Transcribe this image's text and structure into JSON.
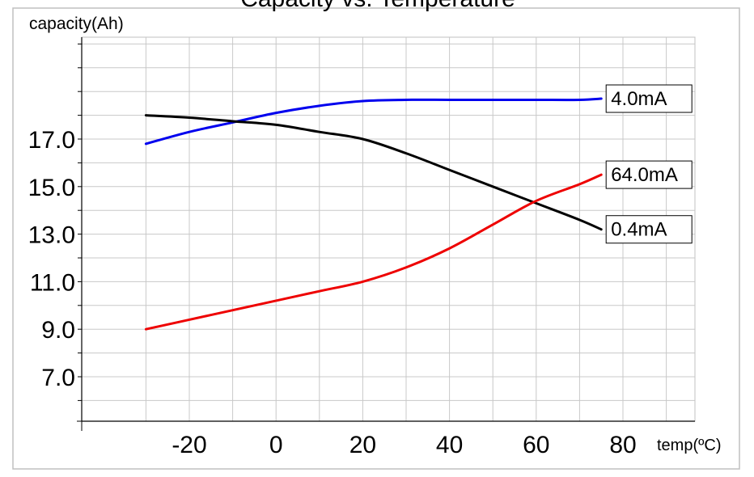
{
  "chart_data": {
    "type": "line",
    "title": "Capacity vs. Temperature",
    "ylabel": "capacity(Ah)",
    "xlabel": "temp(ºC)",
    "xlim": [
      -40,
      90
    ],
    "ylim": [
      3.0,
      22.0
    ],
    "x_ticks": [
      -20,
      0,
      20,
      40,
      60,
      80
    ],
    "y_ticks": [
      7.0,
      9.0,
      11.0,
      13.0,
      15.0,
      17.0
    ],
    "y_tick_labels": [
      "7.0",
      "9.0",
      "11.0",
      "13.0",
      "15.0",
      "17.0"
    ],
    "grid": true,
    "series": [
      {
        "name": "4.0mA",
        "color": "#0000ee",
        "points": [
          [
            -30,
            16.8
          ],
          [
            -20,
            17.3
          ],
          [
            -10,
            17.7
          ],
          [
            0,
            18.1
          ],
          [
            10,
            18.4
          ],
          [
            20,
            18.6
          ],
          [
            30,
            18.65
          ],
          [
            40,
            18.65
          ],
          [
            50,
            18.65
          ],
          [
            60,
            18.65
          ],
          [
            70,
            18.65
          ],
          [
            75,
            18.7
          ]
        ]
      },
      {
        "name": "0.4mA",
        "color": "#000000",
        "points": [
          [
            -30,
            18.0
          ],
          [
            -20,
            17.9
          ],
          [
            -10,
            17.75
          ],
          [
            0,
            17.6
          ],
          [
            10,
            17.3
          ],
          [
            20,
            17.0
          ],
          [
            30,
            16.4
          ],
          [
            40,
            15.7
          ],
          [
            50,
            15.0
          ],
          [
            60,
            14.3
          ],
          [
            70,
            13.6
          ],
          [
            75,
            13.2
          ]
        ]
      },
      {
        "name": "64.0mA",
        "color": "#ee0000",
        "points": [
          [
            -30,
            9.0
          ],
          [
            -20,
            9.4
          ],
          [
            -10,
            9.8
          ],
          [
            0,
            10.2
          ],
          [
            10,
            10.6
          ],
          [
            20,
            11.0
          ],
          [
            30,
            11.6
          ],
          [
            40,
            12.4
          ],
          [
            50,
            13.4
          ],
          [
            60,
            14.4
          ],
          [
            70,
            15.1
          ],
          [
            75,
            15.5
          ]
        ]
      }
    ]
  }
}
